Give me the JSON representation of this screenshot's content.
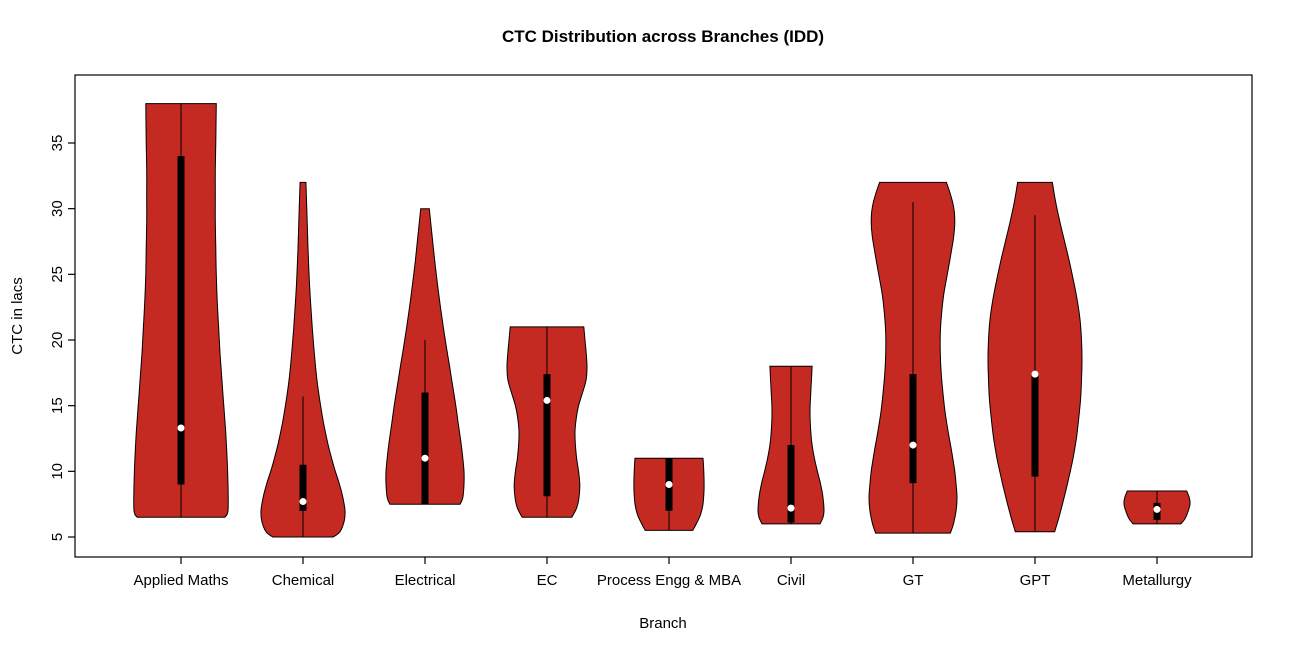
{
  "chart_data": {
    "type": "violin",
    "title": "CTC Distribution across Branches (IDD)",
    "xlabel": "Branch",
    "ylabel": "CTC in lacs",
    "yticks": [
      5,
      10,
      15,
      20,
      25,
      30,
      35
    ],
    "ylim": [
      3.5,
      40.2
    ],
    "grid": false,
    "legend": "none",
    "fill_color": "#C42A22",
    "outline_color": "#000000",
    "categories": [
      "Applied Maths",
      "Chemical",
      "Electrical",
      "EC",
      "Process Engg & MBA",
      "Civil",
      "GT",
      "GPT",
      "Metallurgy"
    ],
    "series": [
      {
        "label": "Applied Maths",
        "min": 6.5,
        "max": 38,
        "q1": 9,
        "q3": 34,
        "median": 13.3,
        "whisker_low": 6.5,
        "whisker_high": 38,
        "max_halfwidth": 47,
        "profile": [
          [
            6.5,
            0.93
          ],
          [
            7,
            1.0
          ],
          [
            9,
            1.0
          ],
          [
            11,
            0.98
          ],
          [
            13,
            0.95
          ],
          [
            15,
            0.91
          ],
          [
            17,
            0.87
          ],
          [
            19,
            0.83
          ],
          [
            21,
            0.8
          ],
          [
            23,
            0.77
          ],
          [
            25,
            0.75
          ],
          [
            27,
            0.74
          ],
          [
            29,
            0.73
          ],
          [
            31,
            0.73
          ],
          [
            33,
            0.73
          ],
          [
            35,
            0.74
          ],
          [
            38,
            0.75
          ]
        ]
      },
      {
        "label": "Chemical",
        "min": 5,
        "max": 32,
        "q1": 7,
        "q3": 10.5,
        "median": 7.7,
        "whisker_low": 5,
        "whisker_high": 15.7,
        "max_halfwidth": 42,
        "profile": [
          [
            5,
            0.72
          ],
          [
            5.4,
            0.88
          ],
          [
            6.2,
            0.98
          ],
          [
            7,
            1.0
          ],
          [
            8,
            0.95
          ],
          [
            9,
            0.87
          ],
          [
            10,
            0.77
          ],
          [
            11,
            0.68
          ],
          [
            12,
            0.6
          ],
          [
            13.5,
            0.5
          ],
          [
            15,
            0.42
          ],
          [
            17,
            0.33
          ],
          [
            19,
            0.27
          ],
          [
            21,
            0.22
          ],
          [
            24,
            0.16
          ],
          [
            27,
            0.12
          ],
          [
            30,
            0.09
          ],
          [
            32,
            0.07
          ]
        ]
      },
      {
        "label": "Electrical",
        "min": 7.5,
        "max": 30,
        "q1": 7.5,
        "q3": 16,
        "median": 11,
        "whisker_low": 7.5,
        "whisker_high": 20,
        "max_halfwidth": 39,
        "profile": [
          [
            7.5,
            0.9
          ],
          [
            8,
            0.97
          ],
          [
            9,
            1.0
          ],
          [
            10,
            1.0
          ],
          [
            11,
            0.97
          ],
          [
            12,
            0.93
          ],
          [
            13.5,
            0.86
          ],
          [
            15,
            0.79
          ],
          [
            16.5,
            0.71
          ],
          [
            18,
            0.63
          ],
          [
            20,
            0.52
          ],
          [
            22,
            0.42
          ],
          [
            24,
            0.33
          ],
          [
            26,
            0.25
          ],
          [
            28,
            0.18
          ],
          [
            30,
            0.11
          ]
        ]
      },
      {
        "label": "EC",
        "min": 6.5,
        "max": 21,
        "q1": 8.1,
        "q3": 17.4,
        "median": 15.4,
        "whisker_low": 6.5,
        "whisker_high": 21,
        "max_halfwidth": 40,
        "profile": [
          [
            6.5,
            0.62
          ],
          [
            7.2,
            0.74
          ],
          [
            8,
            0.8
          ],
          [
            9,
            0.82
          ],
          [
            10,
            0.79
          ],
          [
            11,
            0.74
          ],
          [
            12,
            0.71
          ],
          [
            13,
            0.7
          ],
          [
            14,
            0.73
          ],
          [
            15,
            0.79
          ],
          [
            16,
            0.89
          ],
          [
            17,
            0.98
          ],
          [
            18,
            1.0
          ],
          [
            19,
            0.98
          ],
          [
            20,
            0.95
          ],
          [
            21,
            0.92
          ]
        ]
      },
      {
        "label": "Process Engg & MBA",
        "min": 5.5,
        "max": 11,
        "q1": 7,
        "q3": 11,
        "median": 9,
        "whisker_low": 5.5,
        "whisker_high": 11,
        "max_halfwidth": 35,
        "profile": [
          [
            5.5,
            0.68
          ],
          [
            6,
            0.78
          ],
          [
            6.7,
            0.9
          ],
          [
            7.5,
            0.97
          ],
          [
            8.5,
            1.0
          ],
          [
            9.5,
            1.0
          ],
          [
            10.3,
            0.99
          ],
          [
            11,
            0.97
          ]
        ]
      },
      {
        "label": "Civil",
        "min": 6,
        "max": 18,
        "q1": 6.1,
        "q3": 12,
        "median": 7.2,
        "whisker_low": 6,
        "whisker_high": 18,
        "max_halfwidth": 33,
        "profile": [
          [
            6,
            0.88
          ],
          [
            6.5,
            0.97
          ],
          [
            7,
            1.0
          ],
          [
            8,
            0.97
          ],
          [
            9,
            0.9
          ],
          [
            10,
            0.8
          ],
          [
            11,
            0.71
          ],
          [
            12,
            0.64
          ],
          [
            13,
            0.6
          ],
          [
            14,
            0.58
          ],
          [
            15,
            0.58
          ],
          [
            16,
            0.6
          ],
          [
            17,
            0.62
          ],
          [
            18,
            0.64
          ]
        ]
      },
      {
        "label": "GT",
        "min": 5.3,
        "max": 32,
        "q1": 9.1,
        "q3": 17.4,
        "median": 12,
        "whisker_low": 5.3,
        "whisker_high": 30.5,
        "max_halfwidth": 44,
        "profile": [
          [
            5.3,
            0.85
          ],
          [
            6,
            0.92
          ],
          [
            7,
            0.98
          ],
          [
            8,
            1.0
          ],
          [
            9,
            0.98
          ],
          [
            10,
            0.95
          ],
          [
            11.5,
            0.88
          ],
          [
            13,
            0.8
          ],
          [
            14.5,
            0.73
          ],
          [
            16,
            0.68
          ],
          [
            17.5,
            0.64
          ],
          [
            19,
            0.62
          ],
          [
            20.5,
            0.62
          ],
          [
            22,
            0.65
          ],
          [
            23.5,
            0.7
          ],
          [
            25,
            0.78
          ],
          [
            26.5,
            0.86
          ],
          [
            28,
            0.93
          ],
          [
            29,
            0.95
          ],
          [
            30,
            0.93
          ],
          [
            31,
            0.86
          ],
          [
            32,
            0.76
          ]
        ]
      },
      {
        "label": "GPT",
        "min": 5.4,
        "max": 32,
        "q1": 9.6,
        "q3": 17.5,
        "median": 17.4,
        "whisker_low": 5.4,
        "whisker_high": 29.5,
        "max_halfwidth": 47,
        "profile": [
          [
            5.4,
            0.42
          ],
          [
            6.5,
            0.51
          ],
          [
            8,
            0.62
          ],
          [
            9.5,
            0.72
          ],
          [
            11,
            0.81
          ],
          [
            12.5,
            0.88
          ],
          [
            14,
            0.93
          ],
          [
            15.5,
            0.97
          ],
          [
            17,
            0.99
          ],
          [
            18.5,
            1.0
          ],
          [
            20,
            0.99
          ],
          [
            21.5,
            0.96
          ],
          [
            23,
            0.9
          ],
          [
            24.5,
            0.82
          ],
          [
            26,
            0.73
          ],
          [
            27.5,
            0.63
          ],
          [
            29,
            0.53
          ],
          [
            30.5,
            0.44
          ],
          [
            32,
            0.37
          ]
        ]
      },
      {
        "label": "Metallurgy",
        "min": 6,
        "max": 8.5,
        "q1": 6.3,
        "q3": 7.6,
        "median": 7.1,
        "whisker_low": 6,
        "whisker_high": 8.5,
        "max_halfwidth": 33,
        "profile": [
          [
            6,
            0.72
          ],
          [
            6.4,
            0.85
          ],
          [
            7,
            0.95
          ],
          [
            7.5,
            1.0
          ],
          [
            8,
            0.98
          ],
          [
            8.5,
            0.9
          ]
        ]
      }
    ]
  }
}
